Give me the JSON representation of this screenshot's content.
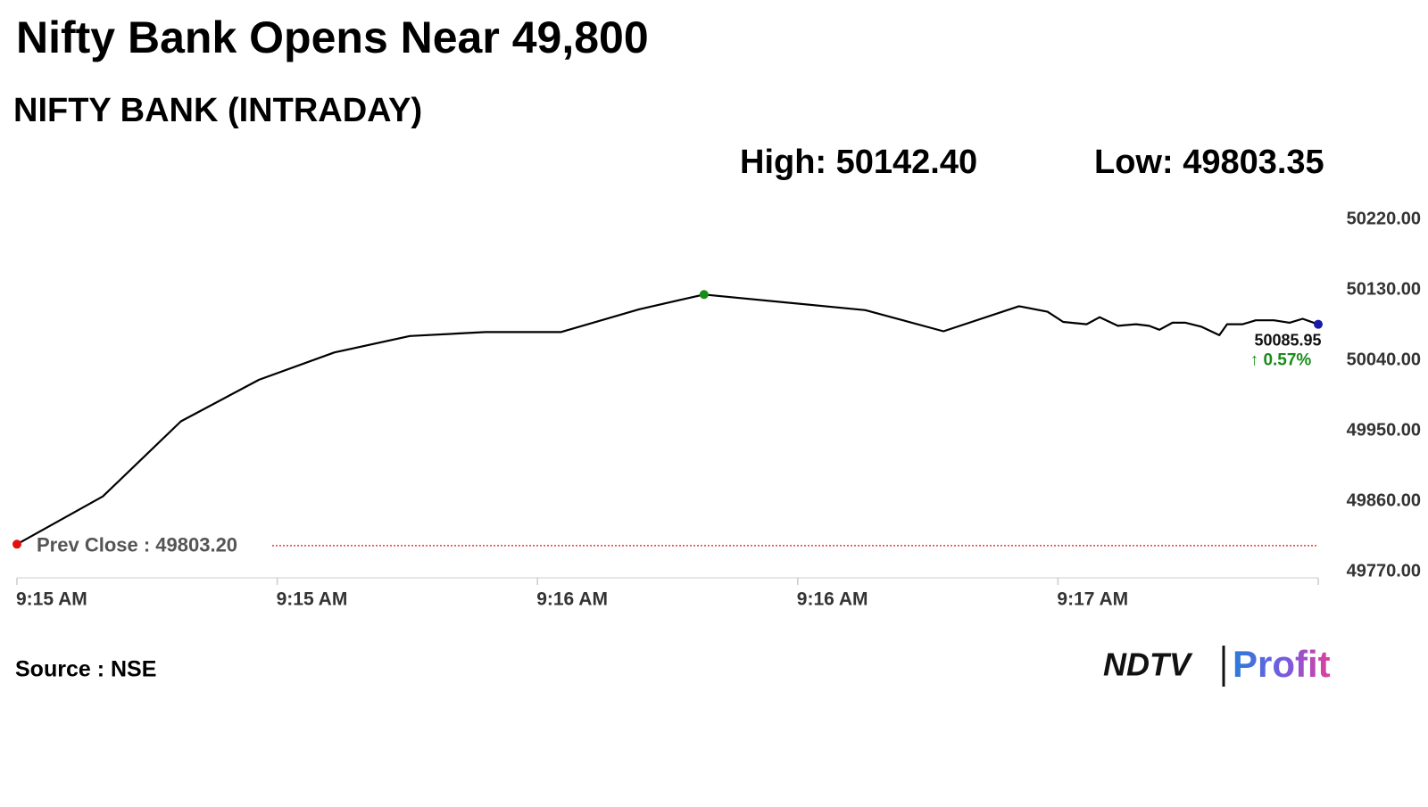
{
  "chart_data": {
    "type": "line",
    "title": "Nifty Bank Opens Near 49,800",
    "subtitle": "NIFTY BANK (INTRADAY)",
    "high_label": "High: 50142.40",
    "low_label": "Low: 49803.35",
    "x": [
      0,
      0.33,
      0.63,
      0.93,
      1.22,
      1.51,
      1.8,
      2.09,
      2.39,
      2.64,
      3.26,
      3.56,
      3.85,
      3.96,
      4.02,
      4.11,
      4.16,
      4.23,
      4.3,
      4.35,
      4.39,
      4.44,
      4.49,
      4.55,
      4.62,
      4.65,
      4.71,
      4.76,
      4.83,
      4.89,
      4.94,
      5
    ],
    "series": [
      {
        "name": "NIFTY BANK",
        "color": "#000000",
        "values": [
          49805,
          49866,
          49962,
          50015,
          50050,
          50071,
          50076,
          50076,
          50105,
          50124,
          50104,
          50077,
          50109,
          50102,
          50089,
          50086,
          50095,
          50084,
          50086,
          50084,
          50079,
          50088,
          50088,
          50083,
          50072,
          50086,
          50086,
          50091,
          50091,
          50088,
          50093,
          50085.95
        ]
      }
    ],
    "marker_colors": {
      "first": "#e31010",
      "high": "#1a8c1a",
      "last": "#1a1aaa"
    },
    "last_value_label": "50085.95",
    "change_label": "↑ 0.57%",
    "change_color": "#1a8c1a",
    "prev_close": 49803.2,
    "prev_close_label": "Prev Close : 49803.20",
    "prev_close_color": "#e31010",
    "xlim": [
      0,
      5
    ],
    "xticks": [
      {
        "value": 0,
        "label": "9:15 AM"
      },
      {
        "value": 1,
        "label": "9:15 AM"
      },
      {
        "value": 2,
        "label": "9:16 AM"
      },
      {
        "value": 3,
        "label": "9:16 AM"
      },
      {
        "value": 4,
        "label": "9:17 AM"
      },
      {
        "value": 5,
        "label": null
      }
    ],
    "ylim": [
      49770,
      50220
    ],
    "yticks": [
      {
        "value": 49770,
        "label": "49770.00"
      },
      {
        "value": 49860,
        "label": "49860.00"
      },
      {
        "value": 49950,
        "label": "49950.00"
      },
      {
        "value": 50040,
        "label": "50040.00"
      },
      {
        "value": 50130,
        "label": "50130.00"
      },
      {
        "value": 50220,
        "label": "50220.00"
      }
    ],
    "source": "Source : NSE",
    "brand": "NDTV",
    "brand_sub": "Profit"
  }
}
